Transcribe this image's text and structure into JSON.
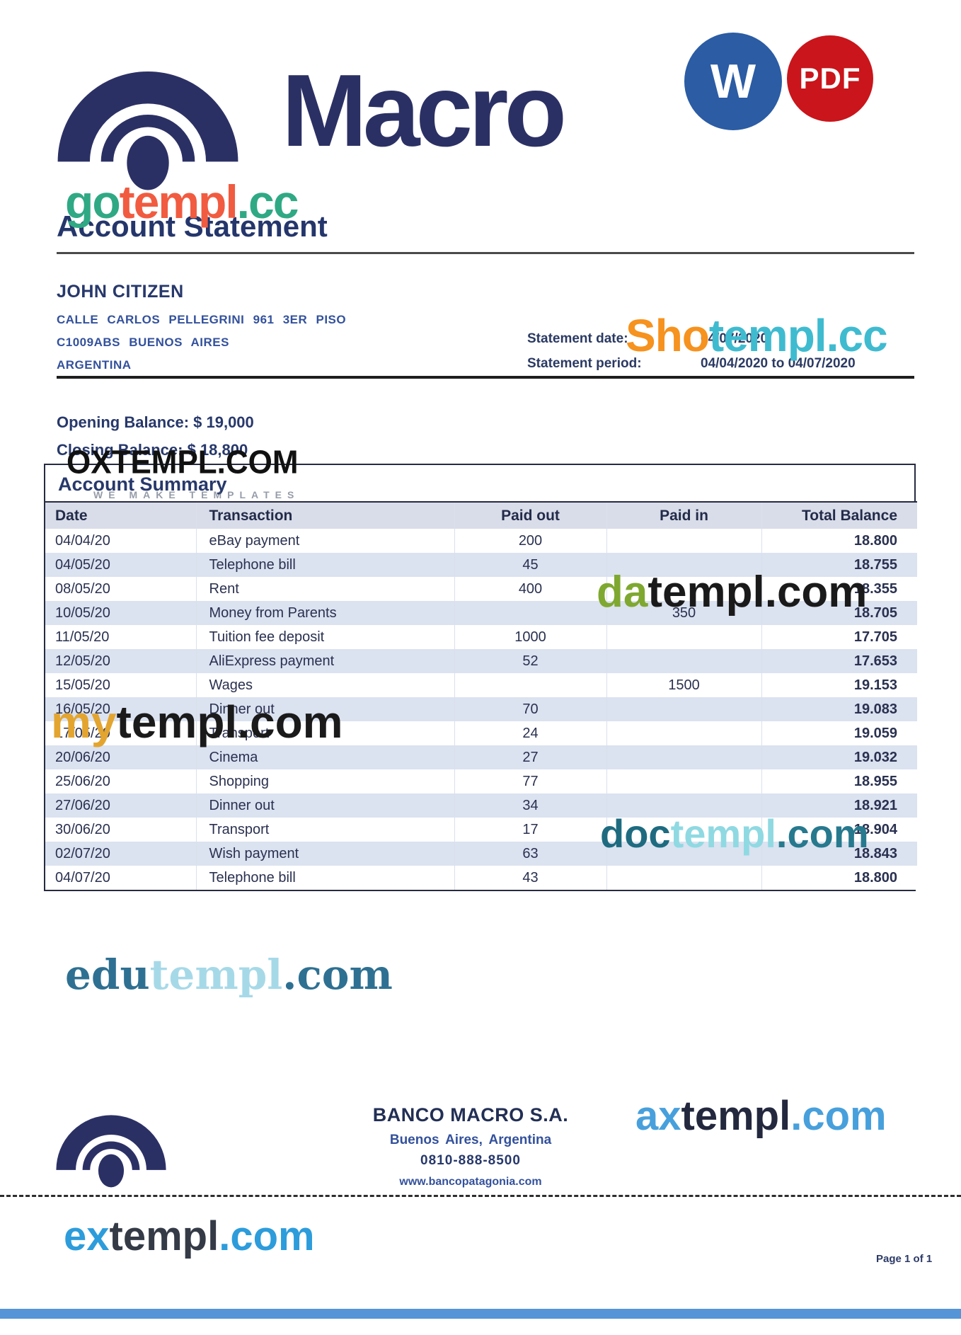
{
  "header": {
    "brand": "Macro",
    "word_icon": "W",
    "pdf_icon": "PDF"
  },
  "title": "Account Statement",
  "customer": {
    "name": "JOHN CITIZEN",
    "address_line1": "CALLE CARLOS PELLEGRINI 961 3ER PISO",
    "address_line2": "C1009ABS BUENOS AIRES",
    "address_line3": "ARGENTINA"
  },
  "statement": {
    "date_label": "Statement date:",
    "date_value": "04/07/2020",
    "period_label": "Statement period:",
    "period_value": "04/04/2020 to 04/07/2020"
  },
  "balances": {
    "opening": "Opening Balance: $ 19,000",
    "closing": "Closing Balance: $ 18,800"
  },
  "table": {
    "title": "Account Summary",
    "columns": [
      "Date",
      "Transaction",
      "Paid out",
      "Paid in",
      "Total Balance"
    ],
    "rows": [
      {
        "date": "04/04/20",
        "transaction": "eBay payment",
        "paid_out": "200",
        "paid_in": "",
        "balance": "18.800"
      },
      {
        "date": "04/05/20",
        "transaction": "Telephone bill",
        "paid_out": "45",
        "paid_in": "",
        "balance": "18.755"
      },
      {
        "date": "08/05/20",
        "transaction": "Rent",
        "paid_out": "400",
        "paid_in": "",
        "balance": "18.355"
      },
      {
        "date": "10/05/20",
        "transaction": "Money from Parents",
        "paid_out": "",
        "paid_in": "350",
        "balance": "18.705"
      },
      {
        "date": "11/05/20",
        "transaction": "Tuition fee deposit",
        "paid_out": "1000",
        "paid_in": "",
        "balance": "17.705"
      },
      {
        "date": "12/05/20",
        "transaction": "AliExpress payment",
        "paid_out": "52",
        "paid_in": "",
        "balance": "17.653"
      },
      {
        "date": "15/05/20",
        "transaction": "Wages",
        "paid_out": "",
        "paid_in": "1500",
        "balance": "19.153"
      },
      {
        "date": "16/05/20",
        "transaction": "Dinner out",
        "paid_out": "70",
        "paid_in": "",
        "balance": "19.083"
      },
      {
        "date": "17/05/20",
        "transaction": "Transport",
        "paid_out": "24",
        "paid_in": "",
        "balance": "19.059"
      },
      {
        "date": "20/06/20",
        "transaction": "Cinema",
        "paid_out": "27",
        "paid_in": "",
        "balance": "19.032"
      },
      {
        "date": "25/06/20",
        "transaction": "Shopping",
        "paid_out": "77",
        "paid_in": "",
        "balance": "18.955"
      },
      {
        "date": "27/06/20",
        "transaction": "Dinner out",
        "paid_out": "34",
        "paid_in": "",
        "balance": "18.921"
      },
      {
        "date": "30/06/20",
        "transaction": "Transport",
        "paid_out": "17",
        "paid_in": "",
        "balance": "18.904"
      },
      {
        "date": "02/07/20",
        "transaction": "Wish payment",
        "paid_out": "63",
        "paid_in": "",
        "balance": "18.843"
      },
      {
        "date": "04/07/20",
        "transaction": "Telephone bill",
        "paid_out": "43",
        "paid_in": "",
        "balance": "18.800"
      }
    ]
  },
  "footer": {
    "bank_name": "BANCO MACRO S.A.",
    "location": "Buenos Aires, Argentina",
    "phone": "0810-888-8500",
    "website": "www.bancopatagonia.com",
    "page": "Page 1 of 1"
  },
  "watermarks": {
    "gotempl": {
      "parts": [
        {
          "t": "go",
          "c": "#2FA984"
        },
        {
          "t": "templ",
          "c": "#F15B40"
        },
        {
          "t": ".cc",
          "c": "#2FA984"
        }
      ]
    },
    "shotempl": {
      "parts": [
        {
          "t": "Sho",
          "c": "#F6921E"
        },
        {
          "t": "templ.cc",
          "c": "#3FBBD0"
        }
      ]
    },
    "oxtempl": {
      "text": "OXTEMPL.COM",
      "c": "#111111",
      "tagline": "WE MAKE TEMPLATES"
    },
    "datempl": {
      "parts": [
        {
          "t": "da",
          "c": "#7FA830"
        },
        {
          "t": "templ.com",
          "c": "#1A1A1A"
        }
      ]
    },
    "mytempl": {
      "parts": [
        {
          "t": "my",
          "c": "#E3A52F"
        },
        {
          "t": "templ.com",
          "c": "#1A1A1A"
        }
      ]
    },
    "doctempl": {
      "parts": [
        {
          "t": "doc",
          "c": "#1E6B80"
        },
        {
          "t": "templ",
          "c": "#8FD9E2"
        },
        {
          "t": ".com",
          "c": "#27798E"
        }
      ]
    },
    "edutempl": {
      "parts": [
        {
          "t": "edu",
          "c": "#2E7092"
        },
        {
          "t": "templ",
          "c": "#A6D9E8"
        },
        {
          "t": ".com",
          "c": "#2E7092"
        }
      ]
    },
    "axtempl": {
      "parts": [
        {
          "t": "ax",
          "c": "#47A0DC"
        },
        {
          "t": "templ",
          "c": "#23283E"
        },
        {
          "t": ".com",
          "c": "#47A0DC"
        }
      ]
    },
    "extempl": {
      "parts": [
        {
          "t": "ex",
          "c": "#2D9CDB"
        },
        {
          "t": "templ",
          "c": "#343A46"
        },
        {
          "t": ".com",
          "c": "#2D9CDB"
        }
      ]
    }
  },
  "colors": {
    "brand_navy": "#2B3064",
    "heading_navy": "#24366B",
    "address_blue": "#33519C",
    "table_header_bg": "#D9DDE9",
    "table_row_alt": "#DBE2F0",
    "word_icon_bg": "#2B5CA4",
    "pdf_icon_bg": "#C9151B",
    "bottom_bar_blue": "#5594D6"
  }
}
